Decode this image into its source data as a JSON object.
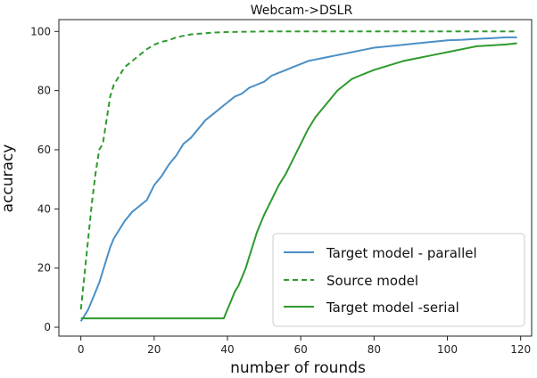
{
  "chart_data": {
    "type": "line",
    "title": "Webcam->DSLR",
    "xlabel": "number of rounds",
    "ylabel": "accuracy",
    "xlim": [
      -6,
      123
    ],
    "ylim": [
      -3,
      104
    ],
    "xticks": [
      0,
      20,
      40,
      60,
      80,
      100,
      120
    ],
    "yticks": [
      0,
      20,
      40,
      60,
      80,
      100
    ],
    "grid": false,
    "legend_position": "lower-right",
    "series": [
      {
        "name": "Target model - parallel",
        "color": "#4a8fc6",
        "style": "solid",
        "x": [
          0,
          1,
          2,
          3,
          4,
          5,
          6,
          7,
          8,
          9,
          10,
          12,
          14,
          16,
          18,
          20,
          22,
          24,
          26,
          28,
          30,
          32,
          34,
          36,
          38,
          40,
          42,
          44,
          46,
          48,
          50,
          52,
          54,
          56,
          58,
          60,
          62,
          64,
          66,
          68,
          70,
          72,
          74,
          76,
          78,
          80,
          84,
          88,
          92,
          96,
          100,
          104,
          108,
          112,
          116,
          119
        ],
        "y": [
          2,
          4,
          6,
          9,
          12,
          15,
          19,
          23,
          27,
          30,
          32,
          36,
          39,
          41,
          43,
          48,
          51,
          55,
          58,
          62,
          64,
          67,
          70,
          72,
          74,
          76,
          78,
          79,
          81,
          82,
          83,
          85,
          86,
          87,
          88,
          89,
          90,
          90.5,
          91,
          91.5,
          92,
          92.5,
          93,
          93.5,
          94,
          94.5,
          95,
          95.5,
          96,
          96.5,
          97,
          97.2,
          97.5,
          97.7,
          98,
          98
        ]
      },
      {
        "name": "Source model",
        "color": "#2e9a2e",
        "style": "dashed",
        "x": [
          0,
          1,
          2,
          3,
          4,
          5,
          6,
          7,
          8,
          9,
          10,
          11,
          12,
          13,
          14,
          16,
          18,
          20,
          22,
          24,
          26,
          28,
          30,
          32,
          34,
          36,
          40,
          45,
          50,
          60,
          70,
          80,
          90,
          100,
          110,
          119
        ],
        "y": [
          6,
          18,
          30,
          42,
          52,
          60,
          62,
          70,
          78,
          82,
          84,
          86,
          88,
          89,
          90,
          92,
          94,
          95.5,
          96.5,
          97,
          98,
          98.5,
          99,
          99.2,
          99.4,
          99.6,
          99.8,
          99.9,
          100,
          100,
          100,
          100,
          100,
          100,
          100,
          100
        ]
      },
      {
        "name": "Target model -serial",
        "color": "#2e9a2e",
        "style": "solid",
        "x": [
          0,
          5,
          10,
          20,
          30,
          39,
          40,
          41,
          42,
          43,
          44,
          45,
          46,
          47,
          48,
          49,
          50,
          52,
          54,
          56,
          58,
          60,
          62,
          64,
          66,
          68,
          70,
          72,
          74,
          76,
          78,
          80,
          84,
          88,
          92,
          96,
          100,
          104,
          108,
          112,
          116,
          119
        ],
        "y": [
          3,
          3,
          3,
          3,
          3,
          3,
          6,
          9,
          12,
          14,
          17,
          20,
          24,
          28,
          32,
          35,
          38,
          43,
          48,
          52,
          57,
          62,
          67,
          71,
          74,
          77,
          80,
          82,
          84,
          85,
          86,
          87,
          88.5,
          90,
          91,
          92,
          93,
          94,
          95,
          95.3,
          95.6,
          96
        ]
      }
    ]
  }
}
